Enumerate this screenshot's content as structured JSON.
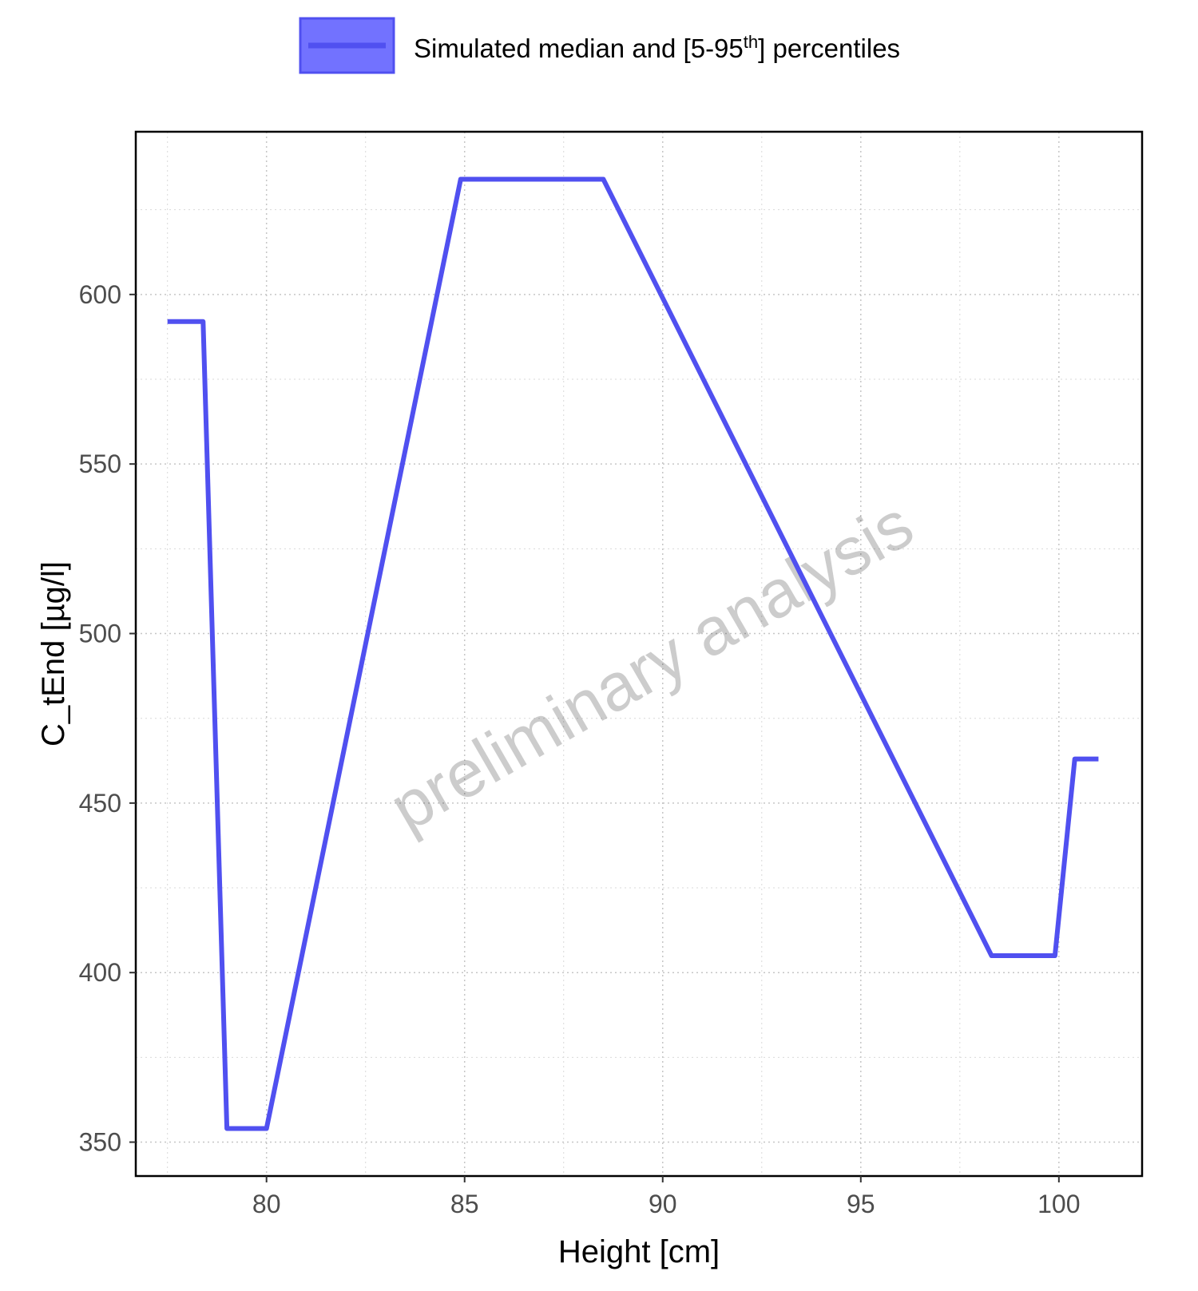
{
  "chart_data": {
    "type": "line",
    "xlabel": "Height [cm]",
    "ylabel": "C_tEnd [µg/l]",
    "xlim": [
      76.7,
      102.1
    ],
    "ylim": [
      340,
      648
    ],
    "x_ticks": [
      80,
      85,
      90,
      95,
      100
    ],
    "x_tick_labels": [
      "80",
      "85",
      "90",
      "95",
      "100"
    ],
    "x_minor_ticks": [
      77.5,
      82.5,
      87.5,
      92.5,
      97.5
    ],
    "y_ticks": [
      350,
      400,
      450,
      500,
      550,
      600
    ],
    "y_tick_labels": [
      "350",
      "400",
      "450",
      "500",
      "550",
      "600"
    ],
    "y_minor_ticks": [
      375,
      425,
      475,
      525,
      575,
      625
    ],
    "grid": true,
    "legend_position": "top",
    "legend": {
      "label_prefix": "Simulated median and [5-95",
      "label_superscript": "th",
      "label_suffix": "] percentiles",
      "color": "#5050f0",
      "fill": "#7272ff"
    },
    "series": [
      {
        "name": "Simulated median and [5-95th] percentiles",
        "color": "#5050f0",
        "x": [
          77.5,
          78.0,
          78.4,
          79.0,
          80.0,
          84.9,
          88.5,
          98.3,
          99.9,
          100.4,
          101.0
        ],
        "y": [
          592,
          592,
          592,
          354,
          354,
          634,
          634,
          405,
          405,
          463,
          463
        ]
      }
    ],
    "watermark": "preliminary analysis"
  }
}
